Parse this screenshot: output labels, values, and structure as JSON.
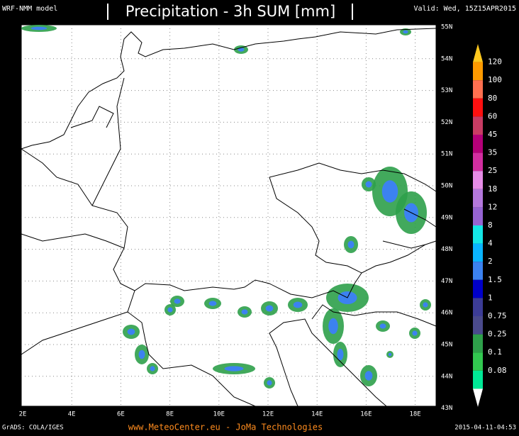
{
  "header": {
    "model": "WRF-NMM model",
    "title": "Precipitation - 3h SUM [mm]",
    "valid": "Valid: Wed, 15Z15APR2015"
  },
  "map": {
    "lat_labels": [
      "55N",
      "54N",
      "53N",
      "52N",
      "51N",
      "50N",
      "49N",
      "48N",
      "47N",
      "46N",
      "45N",
      "44N",
      "43N"
    ],
    "lon_labels": [
      "2E",
      "4E",
      "6E",
      "8E",
      "10E",
      "12E",
      "14E",
      "16E",
      "18E"
    ]
  },
  "colorbar": {
    "labels": [
      120,
      100,
      80,
      60,
      45,
      35,
      25,
      18,
      12,
      8,
      4,
      2,
      1.5,
      1,
      0.75,
      0.25,
      0.1,
      0.08
    ],
    "colors": [
      "#ffc81e",
      "#ff9a00",
      "#ff7050",
      "#ff1010",
      "#c83c64",
      "#b40078",
      "#d22ea0",
      "#e68ce6",
      "#b478dc",
      "#9664d2",
      "#14e6e6",
      "#0ab4ff",
      "#3c82f0",
      "#0000c8",
      "#3c3c96",
      "#4a4a8c",
      "#2ea04a",
      "#32c850",
      "#00e896",
      "#a0f000"
    ]
  },
  "footer": {
    "left": "GrADS: COLA/IGES",
    "center": "www.MeteoCenter.eu  -  JoMa Technologies",
    "right": "2015-04-11-04:53"
  }
}
